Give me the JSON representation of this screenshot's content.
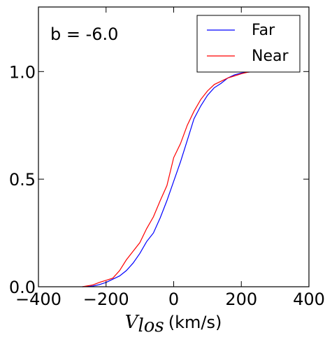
{
  "chart_data": {
    "type": "line",
    "annotation": "b = -6.0",
    "xlabel": {
      "symbol": "V",
      "subscript": "los",
      "unit": "(km/s)"
    },
    "ylabel": "",
    "xlim": [
      -400,
      400
    ],
    "ylim": [
      0.0,
      1.3
    ],
    "xticks": [
      -400,
      -200,
      0,
      200,
      400
    ],
    "xtick_labels": [
      "−400",
      "−200",
      "0",
      "200",
      "400"
    ],
    "yticks": [
      0.0,
      0.5,
      1.0
    ],
    "ytick_labels": [
      "0.0",
      "0.5",
      "1.0"
    ],
    "legend_position": "top-right",
    "grid": false,
    "series": [
      {
        "name": "Far",
        "color": "#0000ff",
        "x": [
          -270,
          -240,
          -220,
          -200,
          -180,
          -160,
          -140,
          -120,
          -100,
          -80,
          -60,
          -40,
          -20,
          0,
          20,
          40,
          60,
          80,
          100,
          120,
          140,
          160,
          180,
          200,
          220,
          240,
          250
        ],
        "y": [
          0.0,
          0.003,
          0.01,
          0.02,
          0.035,
          0.05,
          0.075,
          0.11,
          0.155,
          0.21,
          0.25,
          0.32,
          0.4,
          0.49,
          0.58,
          0.68,
          0.78,
          0.84,
          0.89,
          0.925,
          0.945,
          0.97,
          0.985,
          0.993,
          0.997,
          1.0,
          1.0
        ]
      },
      {
        "name": "Near",
        "color": "#ff0000",
        "x": [
          -270,
          -240,
          -220,
          -200,
          -180,
          -160,
          -140,
          -120,
          -100,
          -80,
          -60,
          -40,
          -20,
          0,
          20,
          40,
          60,
          80,
          100,
          120,
          140,
          160,
          180,
          200,
          220,
          240,
          250
        ],
        "y": [
          0.0,
          0.008,
          0.02,
          0.03,
          0.04,
          0.075,
          0.125,
          0.165,
          0.205,
          0.27,
          0.325,
          0.4,
          0.47,
          0.6,
          0.665,
          0.75,
          0.815,
          0.87,
          0.91,
          0.94,
          0.955,
          0.97,
          0.98,
          0.99,
          0.997,
          1.0,
          1.0
        ]
      }
    ]
  }
}
